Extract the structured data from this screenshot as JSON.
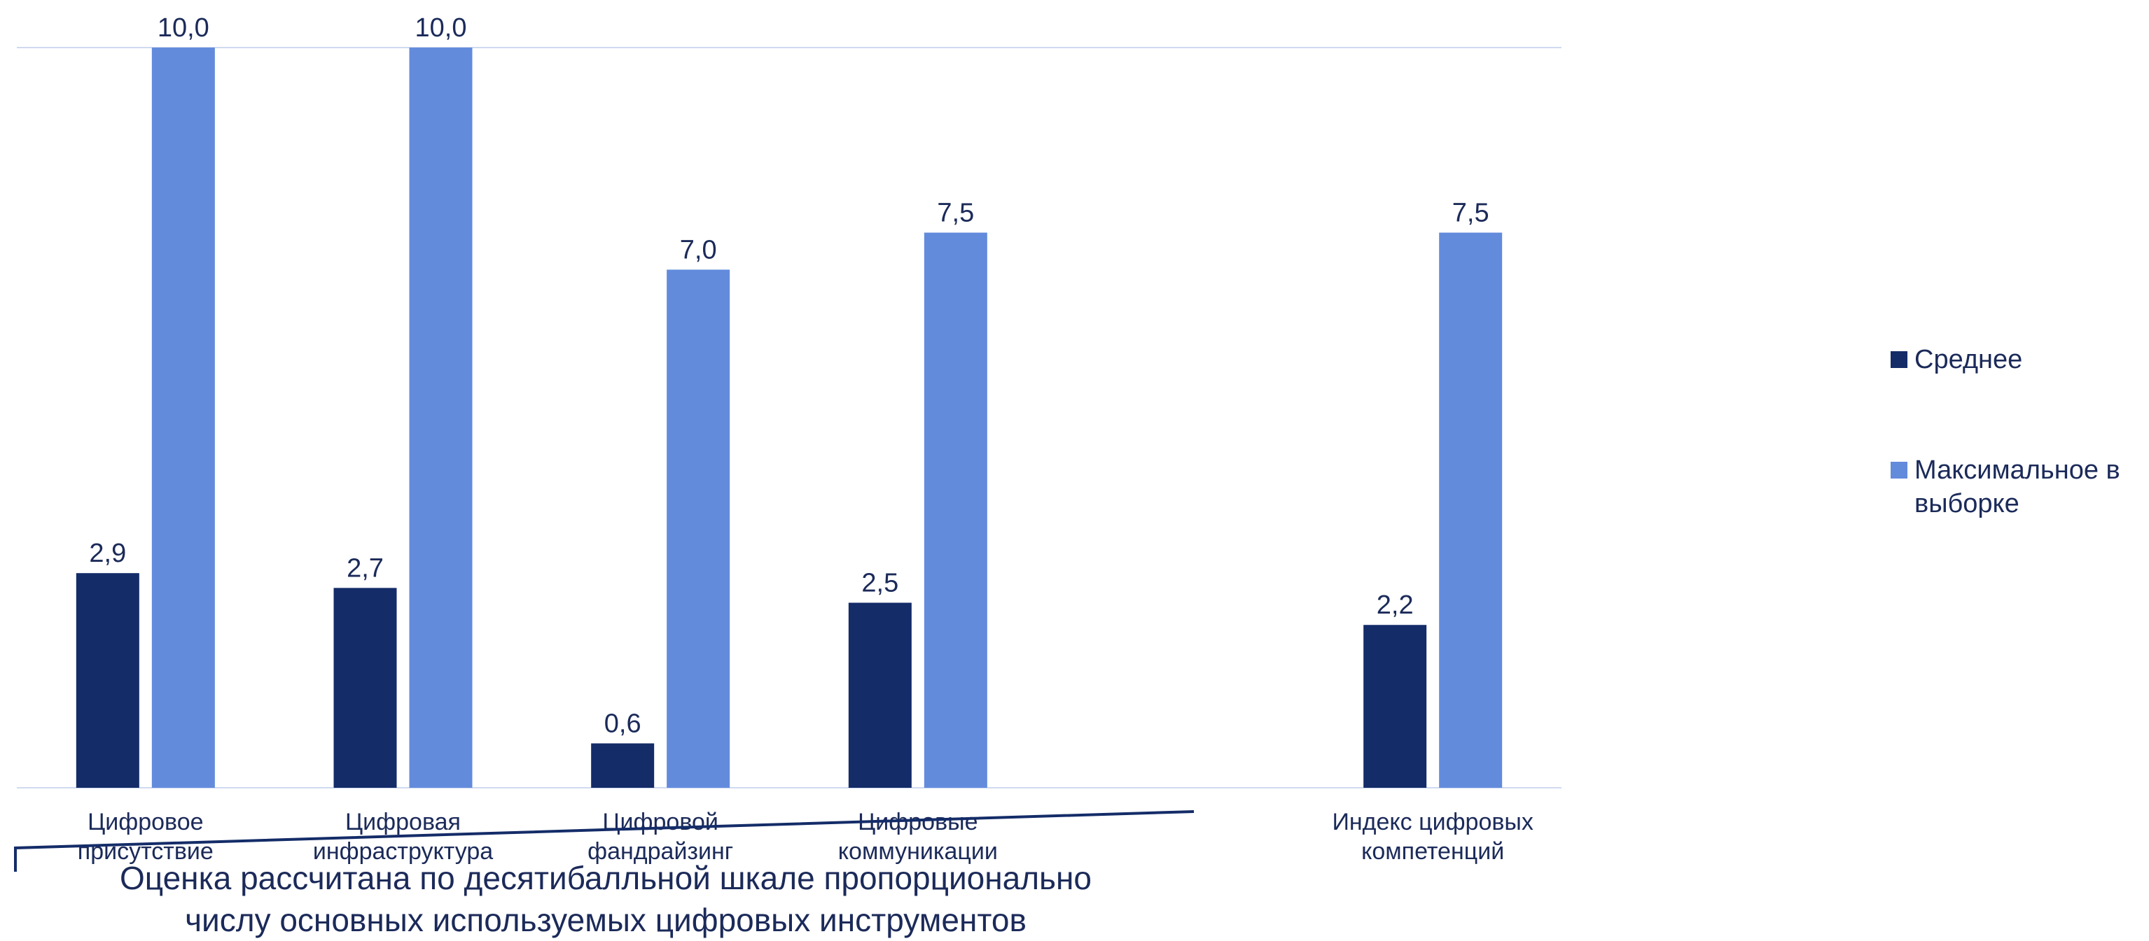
{
  "chart_data": {
    "type": "bar",
    "categories": [
      [
        "Цифровое",
        "присутствие"
      ],
      [
        "Цифровая",
        "инфраструктура"
      ],
      [
        "Цифровой",
        "фандрайзинг"
      ],
      [
        "Цифровые",
        "коммуникации"
      ],
      [
        "",
        ""
      ],
      [
        "Индекс цифровых",
        "компетенций"
      ]
    ],
    "series": [
      {
        "name": "Среднее",
        "color": "#142c68",
        "values": [
          2.9,
          2.7,
          0.6,
          2.5,
          null,
          2.2
        ],
        "labels": [
          "2,9",
          "2,7",
          "0,6",
          "2,5",
          "",
          "2,2"
        ]
      },
      {
        "name": "Максимальное в выборке",
        "color": "#638bdc",
        "values": [
          10.0,
          10.0,
          7.0,
          7.5,
          null,
          7.5
        ],
        "labels": [
          "10,0",
          "10,0",
          "7,0",
          "7,5",
          "",
          "7,5"
        ]
      }
    ],
    "ylim": [
      0,
      10
    ],
    "grid": true,
    "legend_position": "right"
  },
  "legend": {
    "items": [
      {
        "label": "Среднее",
        "color": "#142c68"
      },
      {
        "label": "Максимальное в выборке",
        "color": "#638bdc"
      }
    ]
  },
  "footnote": {
    "line1": "Оценка рассчитана по десятибалльной шкале пропорционально",
    "line2": "числу основных используемых цифровых инструментов"
  }
}
